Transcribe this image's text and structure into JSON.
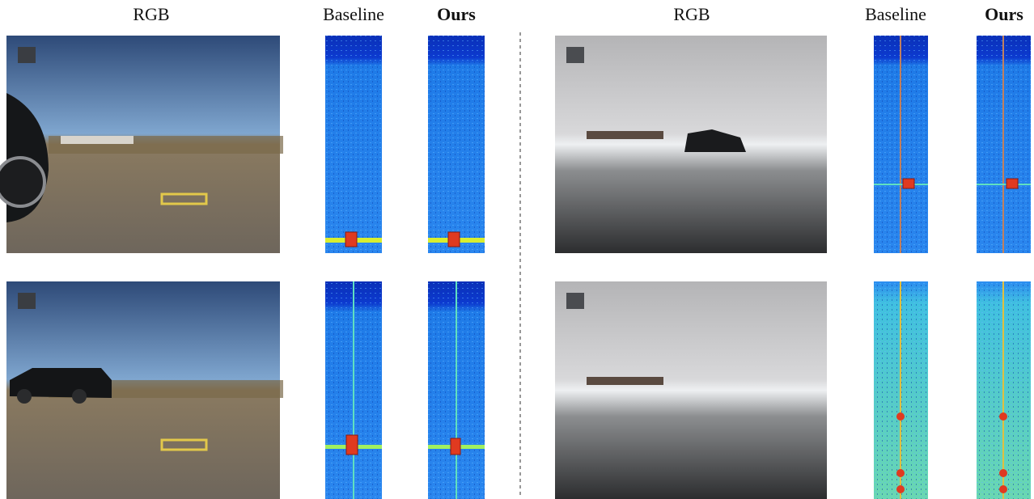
{
  "panels": [
    {
      "headers": [
        "RGB",
        "Baseline",
        "Ours"
      ]
    },
    {
      "headers": [
        "RGB",
        "Baseline",
        "Ours"
      ]
    }
  ]
}
